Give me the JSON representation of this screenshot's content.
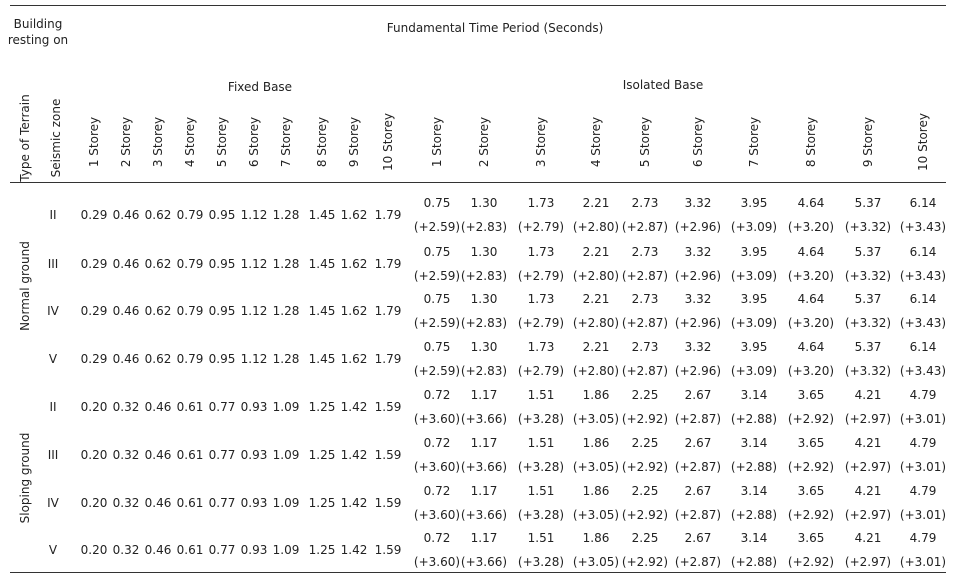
{
  "header": {
    "building_resting_on": "Building resting on",
    "main_title": "Fundamental Time Period (Seconds)",
    "fixed_base": "Fixed Base",
    "isolated_base": "Isolated Base",
    "type_of_terrain": "Type of Terrain",
    "seismic_zone": "Seismic zone",
    "storeys": [
      "1 Storey",
      "2 Storey",
      "3 Storey",
      "4 Storey",
      "5 Storey",
      "6 Storey",
      "7 Storey",
      "8 Storey",
      "9 Storey",
      "10 Storey"
    ]
  },
  "groups": [
    {
      "terrain": "Normal ground",
      "rows": [
        {
          "zone": "II",
          "fixed": [
            "0.29",
            "0.46",
            "0.62",
            "0.79",
            "0.95",
            "1.12",
            "1.28",
            "1.45",
            "1.62",
            "1.79"
          ],
          "isolated": [
            "0.75",
            "1.30",
            "1.73",
            "2.21",
            "2.73",
            "3.32",
            "3.95",
            "4.64",
            "5.37",
            "6.14"
          ],
          "change": [
            "(+2.59)",
            "(+2.83)",
            "(+2.79)",
            "(+2.80)",
            "(+2.87)",
            "(+2.96)",
            "(+3.09)",
            "(+3.20)",
            "(+3.32)",
            "(+3.43)"
          ]
        },
        {
          "zone": "III",
          "fixed": [
            "0.29",
            "0.46",
            "0.62",
            "0.79",
            "0.95",
            "1.12",
            "1.28",
            "1.45",
            "1.62",
            "1.79"
          ],
          "isolated": [
            "0.75",
            "1.30",
            "1.73",
            "2.21",
            "2.73",
            "3.32",
            "3.95",
            "4.64",
            "5.37",
            "6.14"
          ],
          "change": [
            "(+2.59)",
            "(+2.83)",
            "(+2.79)",
            "(+2.80)",
            "(+2.87)",
            "(+2.96)",
            "(+3.09)",
            "(+3.20)",
            "(+3.32)",
            "(+3.43)"
          ]
        },
        {
          "zone": "IV",
          "fixed": [
            "0.29",
            "0.46",
            "0.62",
            "0.79",
            "0.95",
            "1.12",
            "1.28",
            "1.45",
            "1.62",
            "1.79"
          ],
          "isolated": [
            "0.75",
            "1.30",
            "1.73",
            "2.21",
            "2.73",
            "3.32",
            "3.95",
            "4.64",
            "5.37",
            "6.14"
          ],
          "change": [
            "(+2.59)",
            "(+2.83)",
            "(+2.79)",
            "(+2.80)",
            "(+2.87)",
            "(+2.96)",
            "(+3.09)",
            "(+3.20)",
            "(+3.32)",
            "(+3.43)"
          ]
        },
        {
          "zone": "V",
          "fixed": [
            "0.29",
            "0.46",
            "0.62",
            "0.79",
            "0.95",
            "1.12",
            "1.28",
            "1.45",
            "1.62",
            "1.79"
          ],
          "isolated": [
            "0.75",
            "1.30",
            "1.73",
            "2.21",
            "2.73",
            "3.32",
            "3.95",
            "4.64",
            "5.37",
            "6.14"
          ],
          "change": [
            "(+2.59)",
            "(+2.83)",
            "(+2.79)",
            "(+2.80)",
            "(+2.87)",
            "(+2.96)",
            "(+3.09)",
            "(+3.20)",
            "(+3.32)",
            "(+3.43)"
          ]
        }
      ]
    },
    {
      "terrain": "Sloping ground",
      "rows": [
        {
          "zone": "II",
          "fixed": [
            "0.20",
            "0.32",
            "0.46",
            "0.61",
            "0.77",
            "0.93",
            "1.09",
            "1.25",
            "1.42",
            "1.59"
          ],
          "isolated": [
            "0.72",
            "1.17",
            "1.51",
            "1.86",
            "2.25",
            "2.67",
            "3.14",
            "3.65",
            "4.21",
            "4.79"
          ],
          "change": [
            "(+3.60)",
            "(+3.66)",
            "(+3.28)",
            "(+3.05)",
            "(+2.92)",
            "(+2.87)",
            "(+2.88)",
            "(+2.92)",
            "(+2.97)",
            "(+3.01)"
          ]
        },
        {
          "zone": "III",
          "fixed": [
            "0.20",
            "0.32",
            "0.46",
            "0.61",
            "0.77",
            "0.93",
            "1.09",
            "1.25",
            "1.42",
            "1.59"
          ],
          "isolated": [
            "0.72",
            "1.17",
            "1.51",
            "1.86",
            "2.25",
            "2.67",
            "3.14",
            "3.65",
            "4.21",
            "4.79"
          ],
          "change": [
            "(+3.60)",
            "(+3.66)",
            "(+3.28)",
            "(+3.05)",
            "(+2.92)",
            "(+2.87)",
            "(+2.88)",
            "(+2.92)",
            "(+2.97)",
            "(+3.01)"
          ]
        },
        {
          "zone": "IV",
          "fixed": [
            "0.20",
            "0.32",
            "0.46",
            "0.61",
            "0.77",
            "0.93",
            "1.09",
            "1.25",
            "1.42",
            "1.59"
          ],
          "isolated": [
            "0.72",
            "1.17",
            "1.51",
            "1.86",
            "2.25",
            "2.67",
            "3.14",
            "3.65",
            "4.21",
            "4.79"
          ],
          "change": [
            "(+3.60)",
            "(+3.66)",
            "(+3.28)",
            "(+3.05)",
            "(+2.92)",
            "(+2.87)",
            "(+2.88)",
            "(+2.92)",
            "(+2.97)",
            "(+3.01)"
          ]
        },
        {
          "zone": "V",
          "fixed": [
            "0.20",
            "0.32",
            "0.46",
            "0.61",
            "0.77",
            "0.93",
            "1.09",
            "1.25",
            "1.42",
            "1.59"
          ],
          "isolated": [
            "0.72",
            "1.17",
            "1.51",
            "1.86",
            "2.25",
            "2.67",
            "3.14",
            "3.65",
            "4.21",
            "4.79"
          ],
          "change": [
            "(+3.60)",
            "(+3.66)",
            "(+3.28)",
            "(+3.05)",
            "(+2.92)",
            "(+2.87)",
            "(+2.88)",
            "(+2.92)",
            "(+2.97)",
            "(+3.01)"
          ]
        }
      ]
    }
  ]
}
